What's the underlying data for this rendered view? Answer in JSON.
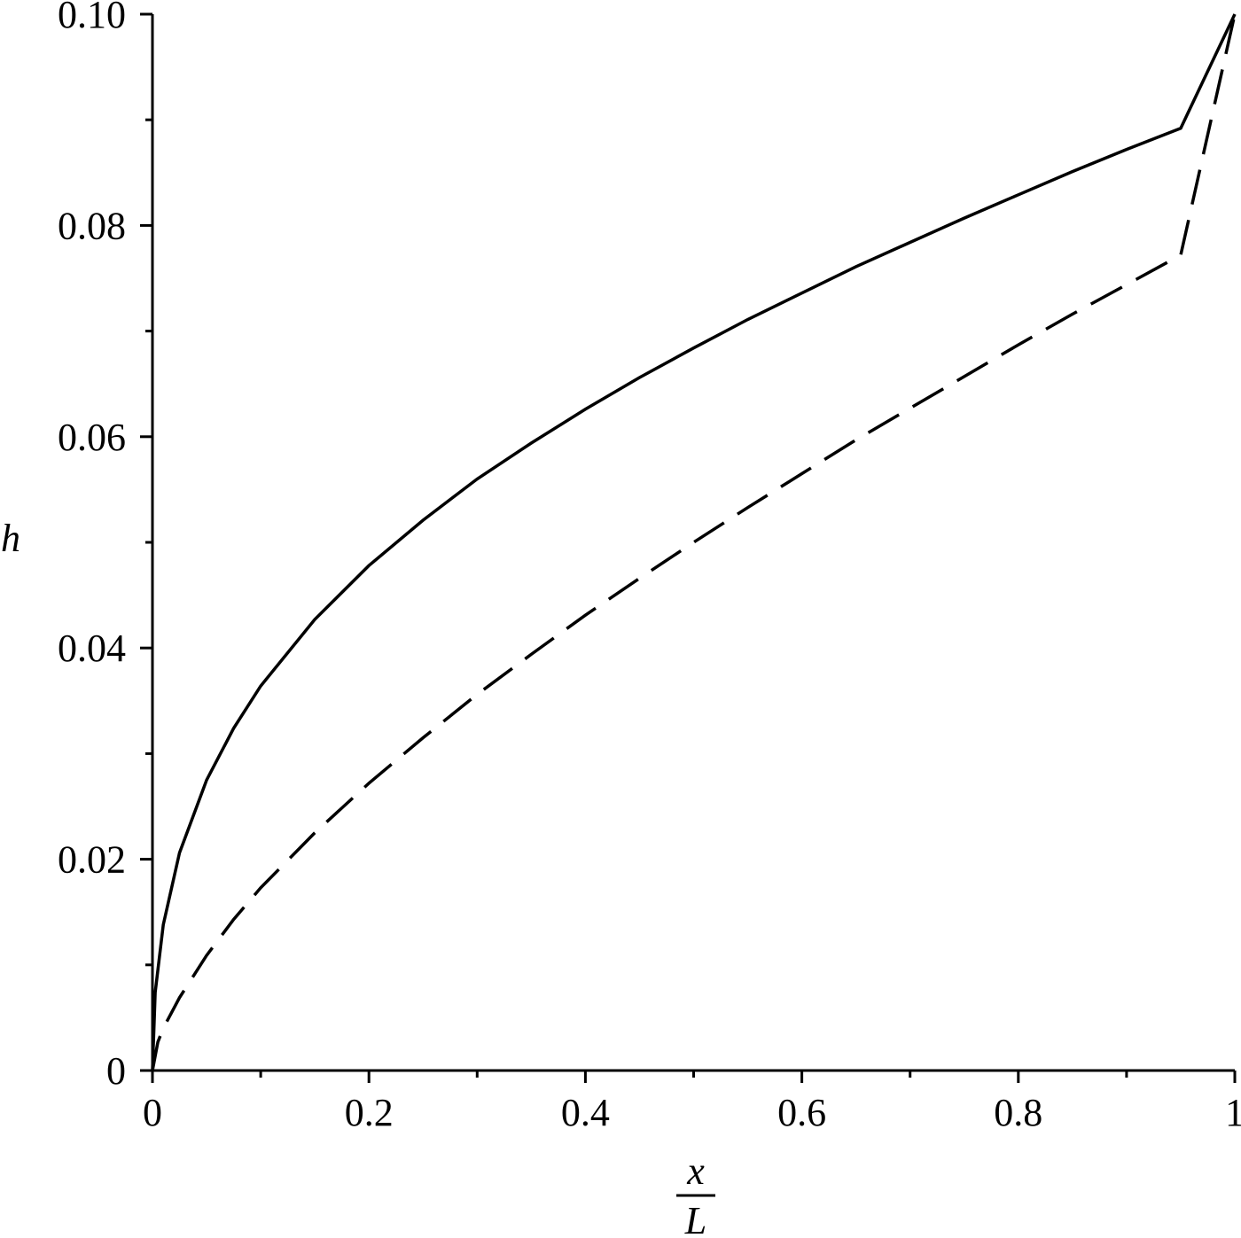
{
  "chart_data": {
    "type": "line",
    "title": "",
    "xlabel": {
      "numerator": "x",
      "denominator": "L"
    },
    "ylabel": "h",
    "xlim": [
      0,
      1
    ],
    "ylim": [
      0,
      0.1
    ],
    "x_major_ticks": [
      0,
      0.2,
      0.4,
      0.6,
      0.8,
      1
    ],
    "x_tick_labels": [
      "0",
      "0.2",
      "0.4",
      "0.6",
      "0.8",
      "1"
    ],
    "x_minor_ticks": [
      0.1,
      0.3,
      0.5,
      0.7,
      0.9
    ],
    "y_major_ticks": [
      0,
      0.02,
      0.04,
      0.06,
      0.08,
      0.1
    ],
    "y_tick_labels": [
      "0",
      "0.02",
      "0.04",
      "0.06",
      "0.08",
      "0.10"
    ],
    "y_minor_ticks": [
      0.01,
      0.03,
      0.05,
      0.07,
      0.09
    ],
    "grid": false,
    "legend": "none",
    "series": [
      {
        "style": "solid",
        "color": "#000000",
        "x": [
          0,
          0.0025,
          0.01,
          0.025,
          0.05,
          0.075,
          0.1,
          0.15,
          0.2,
          0.25,
          0.3,
          0.35,
          0.4,
          0.45,
          0.5,
          0.55,
          0.6,
          0.65,
          0.7,
          0.75,
          0.8,
          0.85,
          0.9,
          0.95,
          1.0
        ],
        "y": [
          0,
          0.0074,
          0.0138,
          0.0206,
          0.0275,
          0.0324,
          0.0364,
          0.0427,
          0.0478,
          0.0521,
          0.056,
          0.0594,
          0.0626,
          0.0656,
          0.0684,
          0.0711,
          0.0736,
          0.0761,
          0.0784,
          0.0807,
          0.0829,
          0.0851,
          0.0872,
          0.0892,
          0.1
        ]
      },
      {
        "style": "dashed",
        "color": "#000000",
        "x": [
          0,
          0.005,
          0.01,
          0.025,
          0.05,
          0.075,
          0.1,
          0.15,
          0.2,
          0.25,
          0.3,
          0.35,
          0.4,
          0.45,
          0.5,
          0.55,
          0.6,
          0.65,
          0.7,
          0.75,
          0.8,
          0.85,
          0.9,
          0.95,
          1.0
        ],
        "y": [
          0,
          0.0027,
          0.004,
          0.0069,
          0.0109,
          0.0143,
          0.0173,
          0.0225,
          0.0272,
          0.0315,
          0.0356,
          0.0394,
          0.0431,
          0.0466,
          0.05,
          0.0533,
          0.0565,
          0.0597,
          0.0627,
          0.0657,
          0.0687,
          0.0716,
          0.0744,
          0.0772,
          0.1
        ]
      }
    ]
  }
}
